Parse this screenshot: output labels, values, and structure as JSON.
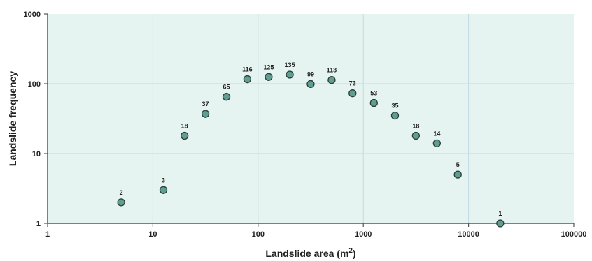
{
  "chart_data": {
    "type": "scatter",
    "title": "",
    "xlabel": "Landslide area (m",
    "xlabel_sup": "2",
    "xlabel_end": ")",
    "ylabel": "Landslide frequency",
    "x_scale": "log",
    "y_scale": "log",
    "xlim": [
      1,
      100000
    ],
    "ylim": [
      1,
      1000
    ],
    "grid": true,
    "x_ticks": [
      {
        "value": 1,
        "label": "1"
      },
      {
        "value": 10,
        "label": "10"
      },
      {
        "value": 100,
        "label": "100"
      },
      {
        "value": 1000,
        "label": "1000"
      },
      {
        "value": 10000,
        "label": "10000"
      },
      {
        "value": 100000,
        "label": "100000"
      }
    ],
    "y_ticks": [
      {
        "value": 1,
        "label": "1"
      },
      {
        "value": 10,
        "label": "10"
      },
      {
        "value": 100,
        "label": "100"
      },
      {
        "value": 1000,
        "label": "1000"
      }
    ],
    "points": [
      {
        "x": 5,
        "y": 2,
        "label": "2"
      },
      {
        "x": 12.6,
        "y": 3,
        "label": "3"
      },
      {
        "x": 20,
        "y": 18,
        "label": "18"
      },
      {
        "x": 31.6,
        "y": 37,
        "label": "37"
      },
      {
        "x": 50,
        "y": 65,
        "label": "65"
      },
      {
        "x": 79,
        "y": 116,
        "label": "116"
      },
      {
        "x": 126,
        "y": 125,
        "label": "125"
      },
      {
        "x": 200,
        "y": 135,
        "label": "135"
      },
      {
        "x": 316,
        "y": 99,
        "label": "99"
      },
      {
        "x": 500,
        "y": 113,
        "label": "113"
      },
      {
        "x": 790,
        "y": 73,
        "label": "73"
      },
      {
        "x": 1260,
        "y": 53,
        "label": "53"
      },
      {
        "x": 2000,
        "y": 35,
        "label": "35"
      },
      {
        "x": 3160,
        "y": 18,
        "label": "18"
      },
      {
        "x": 5000,
        "y": 14,
        "label": "14"
      },
      {
        "x": 7900,
        "y": 5,
        "label": "5"
      },
      {
        "x": 20000,
        "y": 1,
        "label": "1"
      }
    ],
    "colors": {
      "plot_background": "#e5f3f1",
      "grid": "#c2dbe0",
      "axis": "#555555",
      "marker_fill": "#5f9e91",
      "marker_stroke": "#2c3c3a"
    }
  }
}
